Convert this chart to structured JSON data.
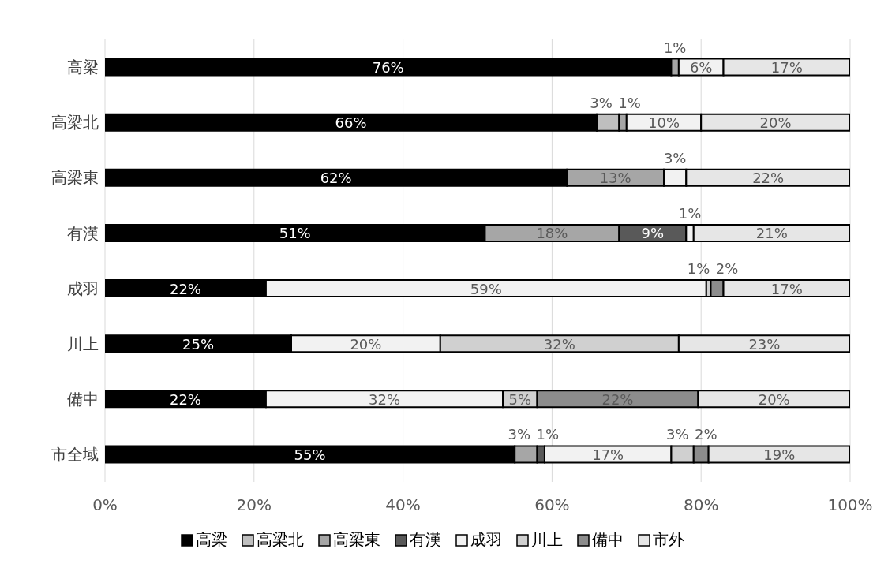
{
  "chart_data": {
    "type": "bar",
    "orientation": "horizontal",
    "stacked": true,
    "categories": [
      "高梁",
      "高梁北",
      "高梁東",
      "有漢",
      "成羽",
      "川上",
      "備中",
      "市全域"
    ],
    "series": [
      {
        "name": "高梁",
        "color": "#000000",
        "values": [
          76,
          66,
          62,
          51,
          21.6,
          25,
          21.6,
          55
        ],
        "value_labels": [
          "76%",
          "66%",
          "62%",
          "51%",
          "22%",
          "25%",
          "22%",
          "55%"
        ]
      },
      {
        "name": "高梁北",
        "color": "#bfbfbf",
        "values": [
          0,
          3,
          0,
          0,
          0,
          0,
          0,
          0
        ],
        "value_labels": [
          null,
          "3%",
          null,
          null,
          null,
          null,
          null,
          null
        ]
      },
      {
        "name": "高梁東",
        "color": "#a6a6a6",
        "values": [
          1,
          1,
          13,
          18,
          0,
          0,
          0,
          3
        ],
        "value_labels": [
          "1%",
          "1%",
          "13%",
          "18%",
          null,
          null,
          null,
          "3%"
        ]
      },
      {
        "name": "有漢",
        "color": "#595959",
        "values": [
          0,
          0,
          0,
          9,
          0,
          0,
          0,
          1
        ],
        "value_labels": [
          null,
          null,
          null,
          "9%",
          null,
          null,
          null,
          "1%"
        ]
      },
      {
        "name": "成羽",
        "color": "#f2f2f2",
        "values": [
          6,
          10,
          3,
          1,
          59.1,
          20,
          31.8,
          17
        ],
        "value_labels": [
          "6%",
          "10%",
          "3%",
          "1%",
          "59%",
          "20%",
          "32%",
          "17%"
        ]
      },
      {
        "name": "川上",
        "color": "#d0d0d0",
        "values": [
          0,
          0,
          0,
          0,
          0.6,
          32,
          4.6,
          3
        ],
        "value_labels": [
          null,
          null,
          null,
          null,
          "1%",
          "32%",
          "5%",
          "3%"
        ]
      },
      {
        "name": "備中",
        "color": "#8c8c8c",
        "values": [
          0,
          0,
          0,
          0,
          1.7,
          0,
          21.6,
          2
        ],
        "value_labels": [
          null,
          null,
          null,
          null,
          "2%",
          null,
          "22%",
          "2%"
        ]
      },
      {
        "name": "市外",
        "color": "#e6e6e6",
        "values": [
          17,
          20,
          22,
          21,
          17,
          23,
          20.4,
          19
        ],
        "value_labels": [
          "17%",
          "20%",
          "22%",
          "21%",
          "17%",
          "23%",
          "20%",
          "19%"
        ]
      }
    ],
    "xlim": [
      0,
      100
    ],
    "xticks": [
      {
        "value": 0,
        "label": "0%"
      },
      {
        "value": 20,
        "label": "20%"
      },
      {
        "value": 40,
        "label": "40%"
      },
      {
        "value": 60,
        "label": "60%"
      },
      {
        "value": 80,
        "label": "80%"
      },
      {
        "value": 100,
        "label": "100%"
      }
    ],
    "grid": "x",
    "legend": "bottom"
  }
}
